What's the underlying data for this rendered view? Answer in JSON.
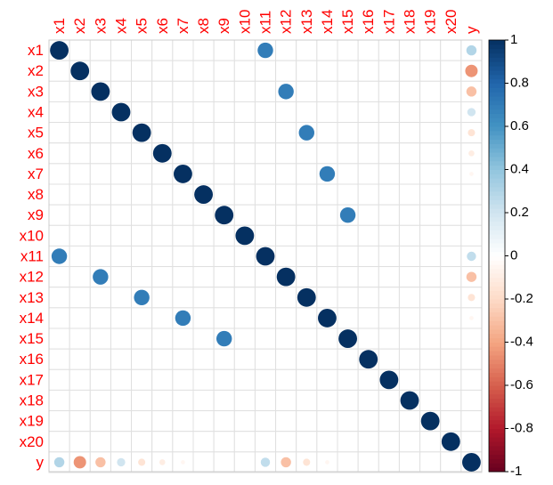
{
  "chart_data": {
    "type": "correlation",
    "variables": [
      "x1",
      "x2",
      "x3",
      "x4",
      "x5",
      "x6",
      "x7",
      "x8",
      "x9",
      "x10",
      "x11",
      "x12",
      "x13",
      "x14",
      "x15",
      "x16",
      "x17",
      "x18",
      "x19",
      "x20",
      "y"
    ],
    "matrix": [
      [
        1,
        0,
        0,
        0,
        0,
        0,
        0,
        0,
        0,
        0,
        0.7,
        0,
        0,
        0,
        0,
        0,
        0,
        0,
        0,
        0,
        0.3
      ],
      [
        0,
        1,
        0,
        0,
        0,
        0,
        0,
        0,
        0,
        0,
        0,
        0,
        0,
        0,
        0,
        0,
        0,
        0,
        0,
        0,
        -0.45
      ],
      [
        0,
        0,
        1,
        0,
        0,
        0,
        0,
        0,
        0,
        0,
        0,
        0.7,
        0,
        0,
        0,
        0,
        0,
        0,
        0,
        0,
        -0.3
      ],
      [
        0,
        0,
        0,
        1,
        0,
        0,
        0,
        0,
        0,
        0,
        0,
        0,
        0,
        0,
        0,
        0,
        0,
        0,
        0,
        0,
        0.2
      ],
      [
        0,
        0,
        0,
        0,
        1,
        0,
        0,
        0,
        0,
        0,
        0,
        0,
        0.7,
        0,
        0,
        0,
        0,
        0,
        0,
        0,
        -0.15
      ],
      [
        0,
        0,
        0,
        0,
        0,
        1,
        0,
        0,
        0,
        0,
        0,
        0,
        0,
        0,
        0,
        0,
        0,
        0,
        0,
        0,
        -0.1
      ],
      [
        0,
        0,
        0,
        0,
        0,
        0,
        1,
        0,
        0,
        0,
        0,
        0,
        0,
        0.7,
        0,
        0,
        0,
        0,
        0,
        0,
        -0.05
      ],
      [
        0,
        0,
        0,
        0,
        0,
        0,
        0,
        1,
        0,
        0,
        0,
        0,
        0,
        0,
        0,
        0,
        0,
        0,
        0,
        0,
        0
      ],
      [
        0,
        0,
        0,
        0,
        0,
        0,
        0,
        0,
        1,
        0,
        0,
        0,
        0,
        0,
        0.7,
        0,
        0,
        0,
        0,
        0,
        0
      ],
      [
        0,
        0,
        0,
        0,
        0,
        0,
        0,
        0,
        0,
        1,
        0,
        0,
        0,
        0,
        0,
        0,
        0,
        0,
        0,
        0,
        0
      ],
      [
        0.7,
        0,
        0,
        0,
        0,
        0,
        0,
        0,
        0,
        0,
        1,
        0,
        0,
        0,
        0,
        0,
        0,
        0,
        0,
        0,
        0.25
      ],
      [
        0,
        0,
        0.7,
        0,
        0,
        0,
        0,
        0,
        0,
        0,
        0,
        1,
        0,
        0,
        0,
        0,
        0,
        0,
        0,
        0,
        -0.3
      ],
      [
        0,
        0,
        0,
        0,
        0.7,
        0,
        0,
        0,
        0,
        0,
        0,
        0,
        1,
        0,
        0,
        0,
        0,
        0,
        0,
        0,
        -0.15
      ],
      [
        0,
        0,
        0,
        0,
        0,
        0,
        0.7,
        0,
        0,
        0,
        0,
        0,
        0,
        1,
        0,
        0,
        0,
        0,
        0,
        0,
        -0.05
      ],
      [
        0,
        0,
        0,
        0,
        0,
        0,
        0,
        0,
        0.7,
        0,
        0,
        0,
        0,
        0,
        1,
        0,
        0,
        0,
        0,
        0,
        0
      ],
      [
        0,
        0,
        0,
        0,
        0,
        0,
        0,
        0,
        0,
        0,
        0,
        0,
        0,
        0,
        0,
        1,
        0,
        0,
        0,
        0,
        0
      ],
      [
        0,
        0,
        0,
        0,
        0,
        0,
        0,
        0,
        0,
        0,
        0,
        0,
        0,
        0,
        0,
        0,
        1,
        0,
        0,
        0,
        0
      ],
      [
        0,
        0,
        0,
        0,
        0,
        0,
        0,
        0,
        0,
        0,
        0,
        0,
        0,
        0,
        0,
        0,
        0,
        1,
        0,
        0,
        0
      ],
      [
        0,
        0,
        0,
        0,
        0,
        0,
        0,
        0,
        0,
        0,
        0,
        0,
        0,
        0,
        0,
        0,
        0,
        0,
        1,
        0,
        0
      ],
      [
        0,
        0,
        0,
        0,
        0,
        0,
        0,
        0,
        0,
        0,
        0,
        0,
        0,
        0,
        0,
        0,
        0,
        0,
        0,
        1,
        0
      ],
      [
        0.3,
        -0.45,
        -0.3,
        0.2,
        -0.15,
        -0.1,
        -0.05,
        0,
        0,
        0,
        0.25,
        -0.3,
        -0.15,
        -0.05,
        0,
        0,
        0,
        0,
        0,
        0,
        1
      ]
    ],
    "colorbar_lim": [
      -1,
      1
    ],
    "colorbar_ticks": [
      -1,
      -0.8,
      -0.6,
      -0.4,
      -0.2,
      0,
      0.2,
      0.4,
      0.6,
      0.8,
      1
    ],
    "colorscale": [
      "#67001F",
      "#B2182B",
      "#D6604D",
      "#F4A582",
      "#FDDBC7",
      "#FFFFFF",
      "#D1E5F0",
      "#92C5DE",
      "#4393C3",
      "#2166AC",
      "#053061"
    ],
    "label_color": "#ff0000"
  }
}
